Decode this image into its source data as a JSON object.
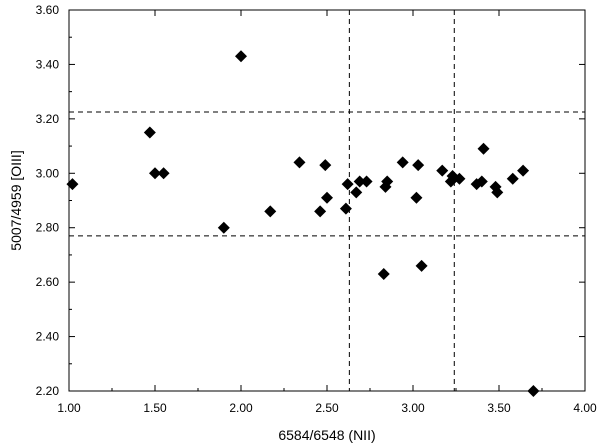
{
  "chart_data": {
    "type": "scatter",
    "title": "",
    "xlabel": "6584/6548 (NII)",
    "ylabel": "5007/4959 [OIII]",
    "xlim": [
      1.0,
      4.0
    ],
    "ylim": [
      2.2,
      3.6
    ],
    "xticks": [
      "1.00",
      "1.50",
      "2.00",
      "2.50",
      "3.00",
      "3.50",
      "4.00"
    ],
    "yticks": [
      "2.20",
      "2.40",
      "2.60",
      "2.80",
      "3.00",
      "3.20",
      "3.40",
      "3.60"
    ],
    "grid": false,
    "marker": "diamond",
    "marker_color": "#000000",
    "reference_lines": {
      "vertical_x": [
        2.63,
        3.24
      ],
      "horizontal_y": [
        2.77,
        3.225
      ],
      "style": "dashed"
    },
    "series": [
      {
        "points": [
          {
            "x": 1.02,
            "y": 2.96
          },
          {
            "x": 1.47,
            "y": 3.15
          },
          {
            "x": 1.5,
            "y": 3.0
          },
          {
            "x": 1.55,
            "y": 3.0
          },
          {
            "x": 1.9,
            "y": 2.8
          },
          {
            "x": 2.0,
            "y": 3.43
          },
          {
            "x": 2.17,
            "y": 2.86
          },
          {
            "x": 2.34,
            "y": 3.04
          },
          {
            "x": 2.46,
            "y": 2.86
          },
          {
            "x": 2.49,
            "y": 3.03
          },
          {
            "x": 2.5,
            "y": 2.91
          },
          {
            "x": 2.61,
            "y": 2.87
          },
          {
            "x": 2.62,
            "y": 2.96
          },
          {
            "x": 2.67,
            "y": 2.93
          },
          {
            "x": 2.69,
            "y": 2.97
          },
          {
            "x": 2.73,
            "y": 2.97
          },
          {
            "x": 2.83,
            "y": 2.63
          },
          {
            "x": 2.84,
            "y": 2.95
          },
          {
            "x": 2.85,
            "y": 2.97
          },
          {
            "x": 2.94,
            "y": 3.04
          },
          {
            "x": 3.02,
            "y": 2.91
          },
          {
            "x": 3.03,
            "y": 3.03
          },
          {
            "x": 3.05,
            "y": 2.66
          },
          {
            "x": 3.17,
            "y": 3.01
          },
          {
            "x": 3.22,
            "y": 2.97
          },
          {
            "x": 3.23,
            "y": 2.99
          },
          {
            "x": 3.27,
            "y": 2.98
          },
          {
            "x": 3.37,
            "y": 2.96
          },
          {
            "x": 3.4,
            "y": 2.97
          },
          {
            "x": 3.41,
            "y": 3.09
          },
          {
            "x": 3.48,
            "y": 2.95
          },
          {
            "x": 3.49,
            "y": 2.93
          },
          {
            "x": 3.58,
            "y": 2.98
          },
          {
            "x": 3.64,
            "y": 3.01
          },
          {
            "x": 3.7,
            "y": 2.2
          }
        ]
      }
    ]
  }
}
